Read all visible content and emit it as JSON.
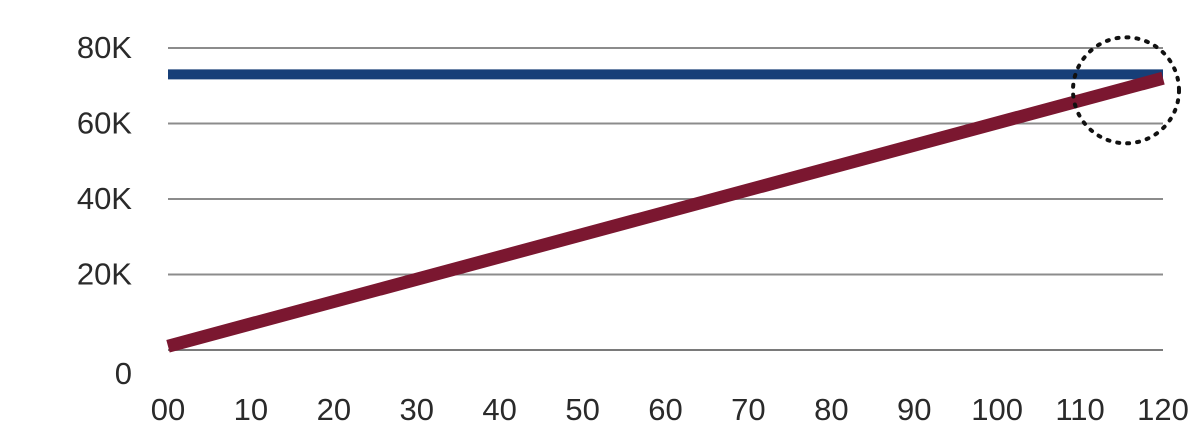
{
  "chart_data": {
    "type": "line",
    "title": "",
    "xlabel": "",
    "ylabel": "",
    "x_ticks": [
      "00",
      "10",
      "20",
      "30",
      "40",
      "50",
      "60",
      "70",
      "80",
      "90",
      "100",
      "110",
      "120"
    ],
    "y_ticks": [
      "0",
      "20K",
      "40K",
      "60K",
      "80K"
    ],
    "xlim": [
      0,
      120
    ],
    "ylim": [
      0,
      80000
    ],
    "grid": "horizontal",
    "series": [
      {
        "color": "#173f78",
        "x": [
          0,
          120
        ],
        "y": [
          73000,
          73000
        ]
      },
      {
        "color": "#7b1730",
        "x": [
          0,
          120
        ],
        "y": [
          1000,
          72000
        ]
      }
    ],
    "annotations": [
      {
        "type": "dotted-circle",
        "x": 120,
        "y": 72500
      }
    ]
  }
}
